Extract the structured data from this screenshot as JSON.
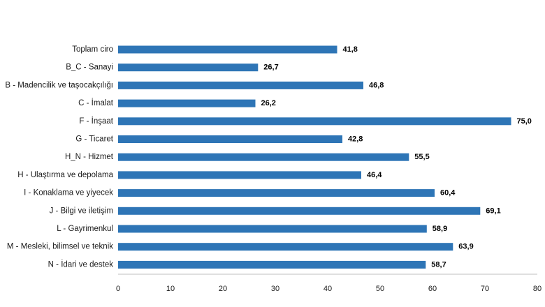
{
  "chart_data": {
    "type": "bar",
    "orientation": "horizontal",
    "title": "",
    "xlabel": "",
    "ylabel": "",
    "categories": [
      "Toplam ciro",
      "B_C - Sanayi",
      "B - Madencilik ve taşocakçılığı",
      "C - İmalat",
      "F - İnşaat",
      "G - Ticaret",
      "H_N - Hizmet",
      "H - Ulaştırma ve depolama",
      "I - Konaklama ve yiyecek",
      "J - Bilgi ve iletişim",
      "L - Gayrimenkul",
      "M - Mesleki, bilimsel ve teknik",
      "N - İdari ve destek"
    ],
    "values": [
      41.8,
      26.7,
      46.8,
      26.2,
      75.0,
      42.8,
      55.5,
      46.4,
      60.4,
      69.1,
      58.9,
      63.9,
      58.7
    ],
    "value_labels": [
      "41,8",
      "26,7",
      "46,8",
      "26,2",
      "75,0",
      "42,8",
      "55,5",
      "46,4",
      "60,4",
      "69,1",
      "58,9",
      "63,9",
      "58,7"
    ],
    "xlim": [
      0,
      80
    ],
    "xticks": [
      "0",
      "10",
      "20",
      "30",
      "40",
      "50",
      "60",
      "70",
      "80"
    ],
    "grid": false,
    "legend": "none",
    "bar_color": "#2e75b6",
    "axis_color": "#bfbfbf"
  }
}
